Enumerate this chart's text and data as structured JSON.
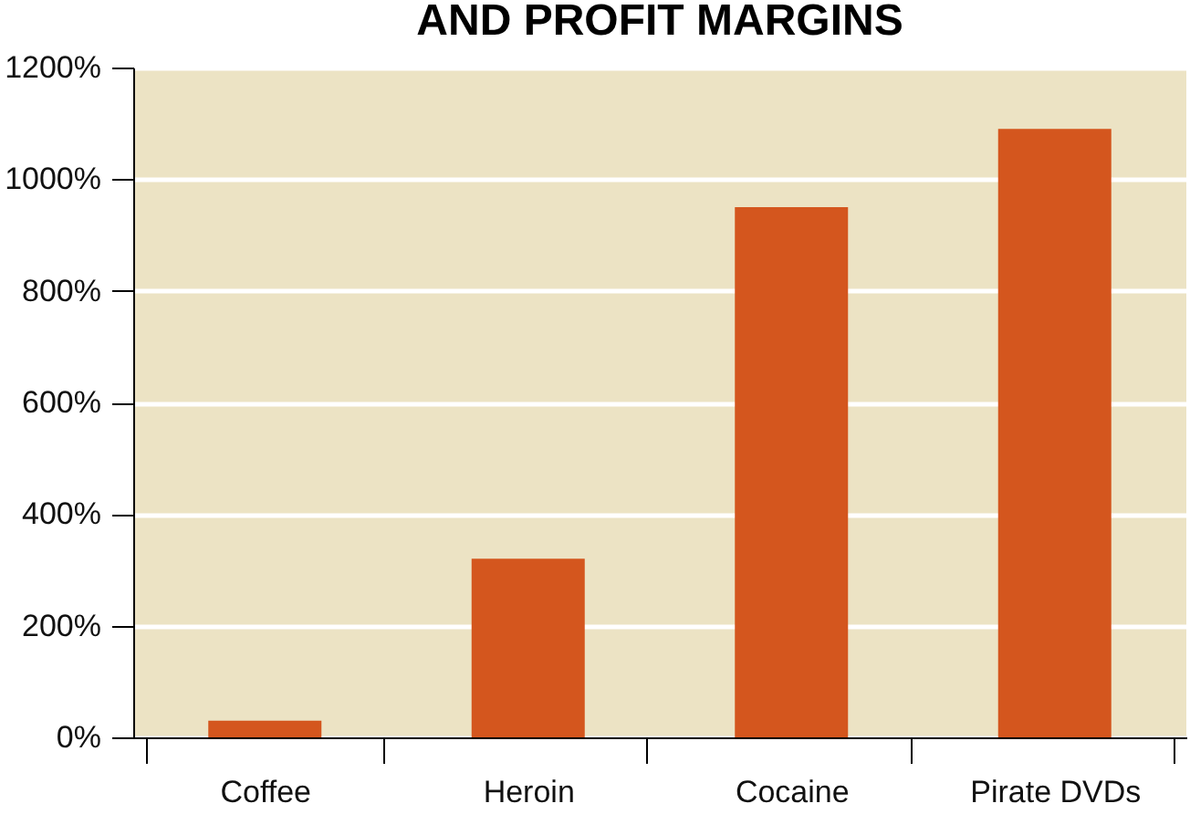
{
  "chart_data": {
    "type": "bar",
    "title": "AND PROFIT MARGINS",
    "categories": [
      "Coffee",
      "Heroin",
      "Cocaine",
      "Pirate DVDs"
    ],
    "values": [
      30,
      320,
      950,
      1090
    ],
    "color": "#d4561e",
    "ylim": [
      0,
      1200
    ],
    "yticks": [
      {
        "value": 0,
        "label": "0%"
      },
      {
        "value": 200,
        "label": "200%"
      },
      {
        "value": 400,
        "label": "400%"
      },
      {
        "value": 600,
        "label": "600%"
      },
      {
        "value": 800,
        "label": "800%"
      },
      {
        "value": 1000,
        "label": "1000%"
      },
      {
        "value": 1200,
        "label": "1200%"
      }
    ],
    "grid": "y"
  }
}
